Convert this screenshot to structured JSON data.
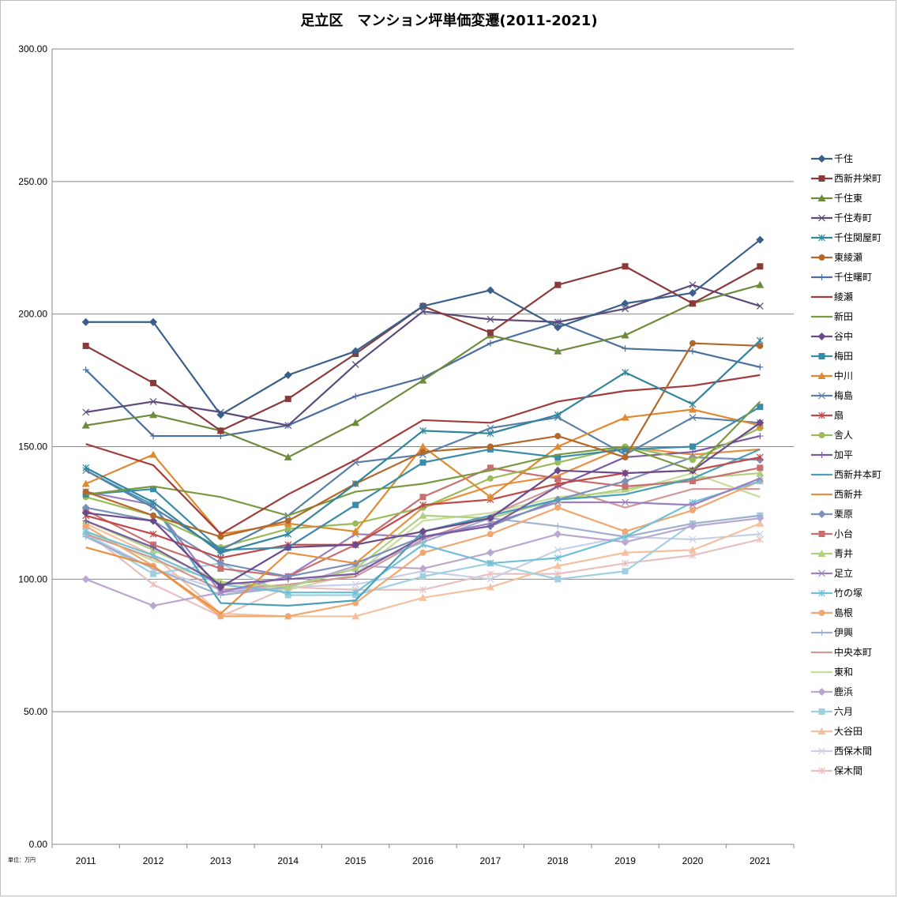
{
  "chart_data": {
    "type": "line",
    "title": "足立区　マンション坪単価変遷(2011-2021)",
    "unit_note": "単位：万円",
    "x": [
      "2011",
      "2012",
      "2013",
      "2014",
      "2015",
      "2016",
      "2017",
      "2018",
      "2019",
      "2020",
      "2021"
    ],
    "ylim": [
      0,
      300
    ],
    "yticks": [
      "0.00",
      "50.00",
      "100.00",
      "150.00",
      "200.00",
      "250.00",
      "300.00"
    ],
    "grid": true,
    "legend_position": "right",
    "series": [
      {
        "name": "千住",
        "color": "#3a5f8a",
        "marker": "diamond",
        "values": [
          197,
          197,
          162,
          177,
          186,
          203,
          209,
          195,
          204,
          208,
          228
        ]
      },
      {
        "name": "西新井栄町",
        "color": "#8b3a3a",
        "marker": "square",
        "values": [
          188,
          174,
          156,
          168,
          185,
          203,
          193,
          211,
          218,
          204,
          218
        ]
      },
      {
        "name": "千住東",
        "color": "#6e8b3d",
        "marker": "triangle",
        "values": [
          158,
          162,
          156,
          146,
          159,
          175,
          192,
          186,
          192,
          204,
          211
        ]
      },
      {
        "name": "千住寿町",
        "color": "#5b4a7a",
        "marker": "x",
        "values": [
          163,
          167,
          163,
          158,
          181,
          201,
          198,
          197,
          202,
          211,
          203
        ]
      },
      {
        "name": "千住関屋町",
        "color": "#31859c",
        "marker": "star",
        "values": [
          142,
          129,
          110,
          117,
          136,
          156,
          155,
          162,
          178,
          166,
          190
        ]
      },
      {
        "name": "東綾瀬",
        "color": "#b3682a",
        "marker": "circle",
        "values": [
          133,
          124,
          116,
          122,
          136,
          148,
          150,
          154,
          146,
          189,
          188
        ]
      },
      {
        "name": "千住曙町",
        "color": "#4a6fa0",
        "marker": "plus",
        "values": [
          179,
          154,
          154,
          158,
          169,
          176,
          189,
          197,
          187,
          186,
          180
        ]
      },
      {
        "name": "綾瀬",
        "color": "#a33b3b",
        "marker": "none",
        "values": [
          151,
          143,
          117,
          132,
          145,
          160,
          159,
          167,
          171,
          173,
          177
        ]
      },
      {
        "name": "新田",
        "color": "#7a9a40",
        "marker": "none",
        "values": [
          132,
          135,
          131,
          124,
          133,
          136,
          141,
          147,
          150,
          141,
          167
        ]
      },
      {
        "name": "谷中",
        "color": "#6a4a8a",
        "marker": "diamond",
        "values": [
          125,
          122,
          97,
          112,
          113,
          118,
          123,
          141,
          140,
          141,
          159
        ]
      },
      {
        "name": "梅田",
        "color": "#3a8aaa",
        "marker": "square",
        "values": [
          132,
          134,
          111,
          112,
          128,
          144,
          149,
          146,
          149,
          150,
          165
        ]
      },
      {
        "name": "中川",
        "color": "#e08a30",
        "marker": "triangle",
        "values": [
          136,
          147,
          117,
          121,
          118,
          150,
          131,
          150,
          161,
          164,
          158
        ]
      },
      {
        "name": "梅島",
        "color": "#5a80a8",
        "marker": "x",
        "values": [
          141,
          127,
          111,
          124,
          144,
          147,
          157,
          161,
          147,
          161,
          159
        ]
      },
      {
        "name": "扇",
        "color": "#c04a4a",
        "marker": "star",
        "values": [
          124,
          117,
          108,
          113,
          113,
          128,
          130,
          136,
          140,
          141,
          146
        ]
      },
      {
        "name": "舎人",
        "color": "#9bbb59",
        "marker": "circle",
        "values": [
          131,
          124,
          112,
          119,
          121,
          127,
          138,
          144,
          150,
          145,
          157
        ]
      },
      {
        "name": "加平",
        "color": "#7a5aa0",
        "marker": "plus",
        "values": [
          122,
          112,
          98,
          100,
          102,
          116,
          120,
          135,
          146,
          148,
          154
        ]
      },
      {
        "name": "西新井本町",
        "color": "#4aa0b8",
        "marker": "none",
        "values": [
          141,
          128,
          91,
          90,
          92,
          118,
          124,
          130,
          132,
          138,
          149
        ]
      },
      {
        "name": "西新井",
        "color": "#e89040",
        "marker": "none",
        "values": [
          112,
          105,
          87,
          110,
          106,
          127,
          135,
          139,
          150,
          147,
          149
        ]
      },
      {
        "name": "栗原",
        "color": "#7a90b8",
        "marker": "diamond",
        "values": [
          127,
          122,
          106,
          101,
          106,
          116,
          120,
          130,
          137,
          146,
          145
        ]
      },
      {
        "name": "小台",
        "color": "#c87070",
        "marker": "square",
        "values": [
          126,
          113,
          104,
          101,
          113,
          131,
          142,
          138,
          135,
          137,
          142
        ]
      },
      {
        "name": "青井",
        "color": "#b0d080",
        "marker": "triangle",
        "values": [
          122,
          111,
          99,
          97,
          104,
          124,
          123,
          130,
          134,
          138,
          140
        ]
      },
      {
        "name": "足立",
        "color": "#9a80c0",
        "marker": "x",
        "values": [
          133,
          128,
          95,
          101,
          117,
          116,
          121,
          129,
          129,
          128,
          138
        ]
      },
      {
        "name": "竹の塚",
        "color": "#70c0d8",
        "marker": "star",
        "values": [
          118,
          109,
          98,
          95,
          95,
          113,
          106,
          108,
          116,
          129,
          137
        ]
      },
      {
        "name": "島根",
        "color": "#f0a870",
        "marker": "circle",
        "values": [
          120,
          105,
          86,
          86,
          91,
          110,
          117,
          127,
          118,
          126,
          137
        ]
      },
      {
        "name": "伊興",
        "color": "#a0b0d0",
        "marker": "plus",
        "values": [
          116,
          104,
          94,
          97,
          104,
          114,
          123,
          120,
          116,
          121,
          124
        ]
      },
      {
        "name": "中央本町",
        "color": "#d09898",
        "marker": "none",
        "values": [
          117,
          108,
          96,
          98,
          101,
          115,
          124,
          135,
          127,
          134,
          134
        ]
      },
      {
        "name": "東和",
        "color": "#c8dca0",
        "marker": "none",
        "values": [
          118,
          107,
          99,
          96,
          102,
          122,
          125,
          131,
          133,
          140,
          131
        ]
      },
      {
        "name": "鹿浜",
        "color": "#b8a8d0",
        "marker": "diamond",
        "values": [
          100,
          90,
          95,
          97,
          105,
          104,
          110,
          117,
          114,
          120,
          123
        ]
      },
      {
        "name": "六月",
        "color": "#a0d0e0",
        "marker": "square",
        "values": [
          117,
          102,
          106,
          94,
          94,
          101,
          106,
          100,
          103,
          121,
          124
        ]
      },
      {
        "name": "大谷田",
        "color": "#f4c0a0",
        "marker": "triangle",
        "values": [
          121,
          109,
          87,
          86,
          86,
          93,
          97,
          105,
          110,
          111,
          121
        ]
      },
      {
        "name": "西保木間",
        "color": "#c8d0e8",
        "marker": "x",
        "values": [
          117,
          104,
          96,
          97,
          98,
          103,
          100,
          111,
          116,
          115,
          117
        ]
      },
      {
        "name": "保木間",
        "color": "#e8c0c0",
        "marker": "star",
        "values": [
          118,
          98,
          86,
          97,
          96,
          96,
          102,
          102,
          106,
          109,
          115
        ]
      }
    ]
  }
}
